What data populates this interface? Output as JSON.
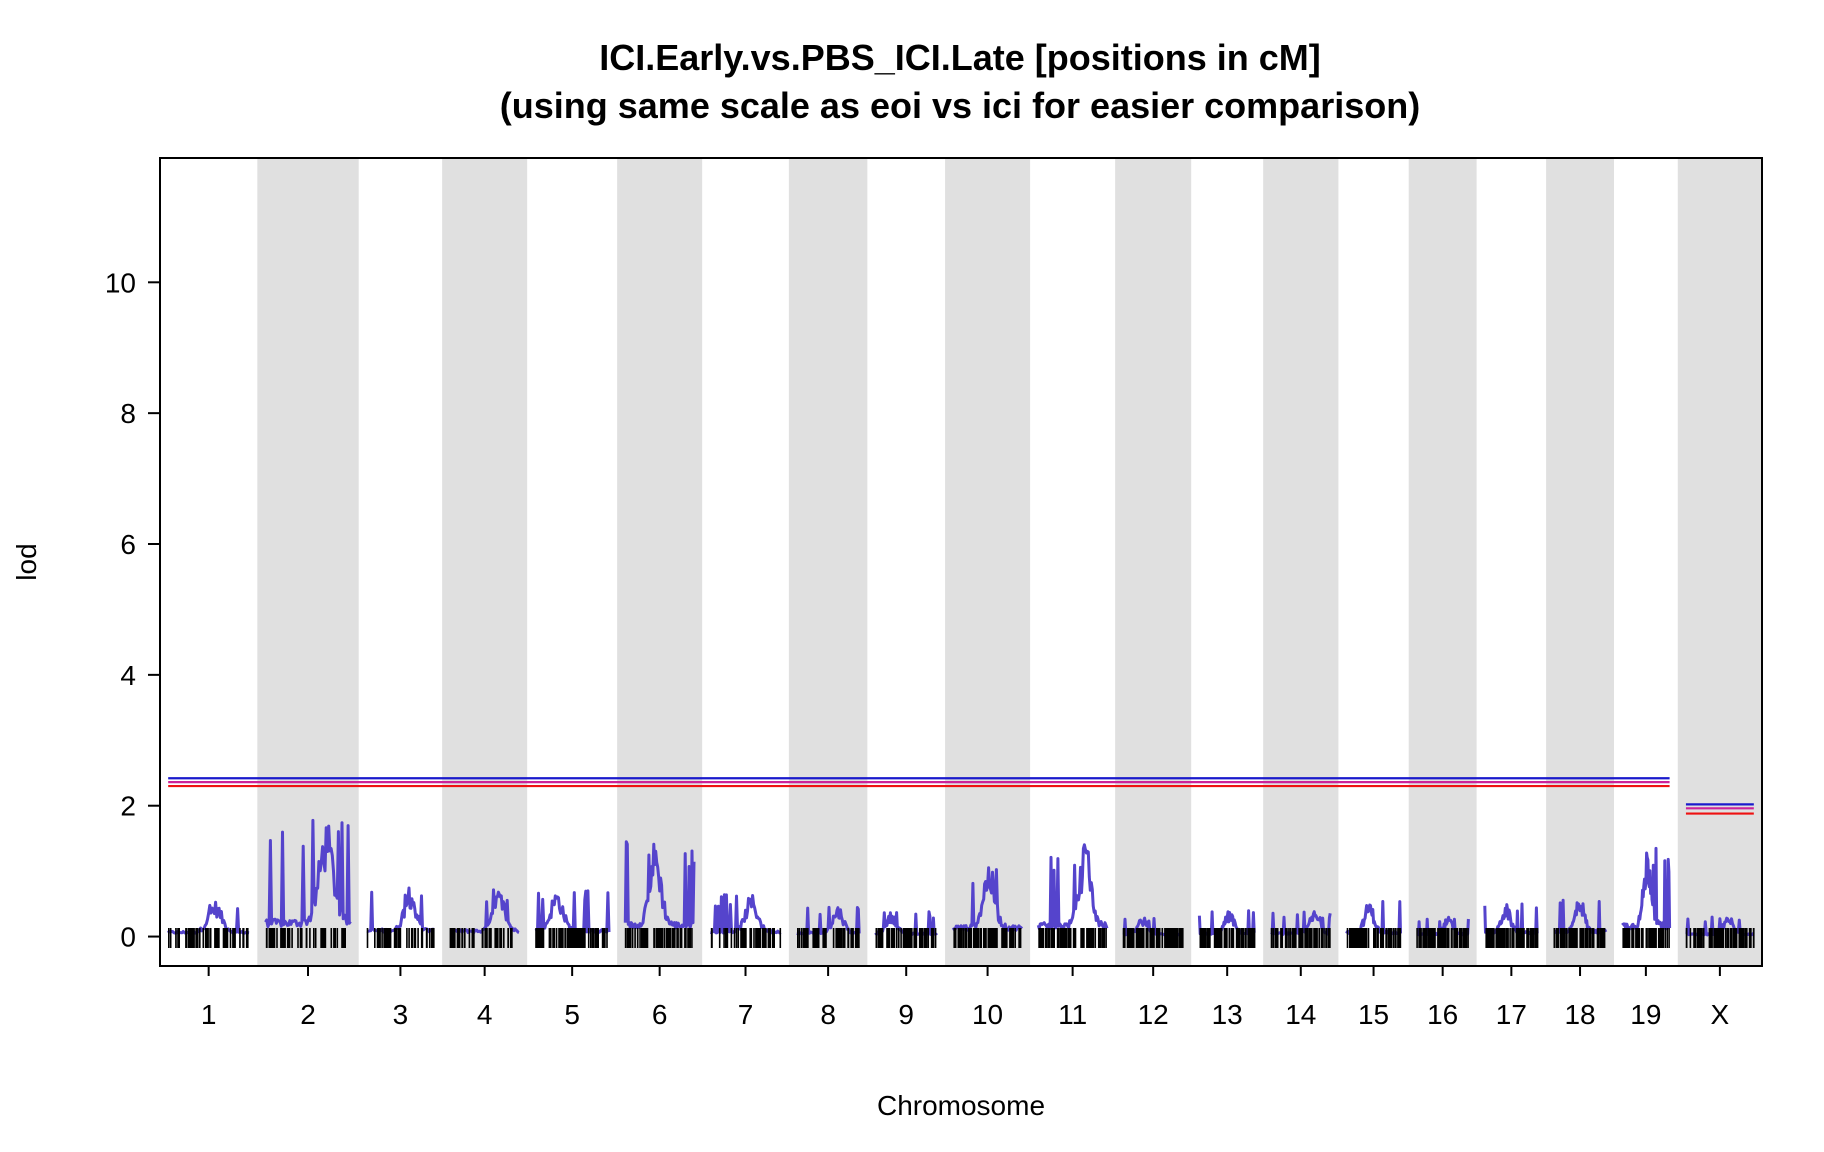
{
  "chart_data": {
    "type": "line",
    "title_line1": "ICI.Early.vs.PBS_ICI.Late [positions in cM]",
    "title_line2": "(using same scale as eoi vs ici for easier comparison)",
    "xlabel": "Chromosome",
    "ylabel": "lod",
    "ylim": [
      -0.45,
      11.9
    ],
    "y_ticks": [
      "0",
      "2",
      "4",
      "6",
      "8",
      "10"
    ],
    "y_tick_values": [
      0,
      2,
      4,
      6,
      8,
      10
    ],
    "chromosomes": [
      "1",
      "2",
      "3",
      "4",
      "5",
      "6",
      "7",
      "8",
      "9",
      "10",
      "11",
      "12",
      "13",
      "14",
      "15",
      "16",
      "17",
      "18",
      "19",
      "X"
    ],
    "chromosome_lengths_cM": [
      99,
      104,
      82,
      84,
      90,
      84,
      86,
      76,
      75,
      84,
      84,
      73,
      68,
      72,
      66,
      63,
      65,
      63,
      58,
      83
    ],
    "series": [
      {
        "name": "ICI.Early.vs.PBS_ICI.Late",
        "color": "#5544cc",
        "peaks": [
          0.55,
          1.78,
          0.78,
          0.72,
          0.72,
          1.48,
          0.65,
          0.48,
          0.38,
          1.15,
          1.42,
          0.3,
          0.4,
          0.4,
          0.55,
          0.3,
          0.5,
          0.65,
          1.4,
          0.3
        ]
      }
    ],
    "threshold_autosome": {
      "blue": 2.42,
      "magenta": 2.36,
      "red": 2.3
    },
    "threshold_X": {
      "blue": 2.02,
      "magenta": 1.96,
      "red": 1.88
    },
    "threshold_colors": {
      "blue": "#1a1acc",
      "magenta": "#cc2299",
      "red": "#ee1111"
    },
    "band_color": "#e0e0e0"
  }
}
